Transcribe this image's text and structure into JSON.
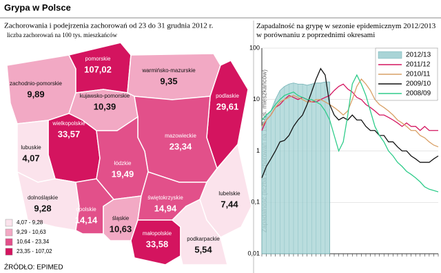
{
  "title": "Grypa w Polsce",
  "source": "ŹRÓDŁO: EPIMED",
  "chart_data": [
    {
      "type": "map",
      "title": "Zachorowania i podejrzenia zachorowań od 23 do 31 grudnia 2012 r.",
      "subtitle": "liczba zachorowań na 100 tys. mieszkańców",
      "categories": [
        "zachodnio-pomorskie",
        "pomorskie",
        "warmińsko-mazurskie",
        "podlaskie",
        "kujawsko-pomorskie",
        "wielkopolskie",
        "lubuskie",
        "mazowieckie",
        "łódzkie",
        "lubelskie",
        "dolnośląskie",
        "opolskie",
        "śląskie",
        "świętokrzyskie",
        "małopolskie",
        "podkarpackie"
      ],
      "values": [
        9.89,
        107.02,
        9.35,
        29.61,
        10.39,
        33.57,
        4.07,
        23.34,
        19.49,
        7.44,
        9.28,
        14.14,
        10.63,
        14.94,
        33.58,
        5.54
      ],
      "value_labels": [
        "9,89",
        "107,02",
        "9,35",
        "29,61",
        "10,39",
        "33,57",
        "4,07",
        "23,34",
        "19,49",
        "7,44",
        "9,28",
        "14,14",
        "10,63",
        "14,94",
        "33,58",
        "5,54"
      ],
      "colors": [
        "#f2a9c4",
        "#d4145f",
        "#f2a9c4",
        "#d4145f",
        "#f2a9c4",
        "#d4145f",
        "#fbe3ec",
        "#e2508a",
        "#e2508a",
        "#fbe3ec",
        "#fbe3ec",
        "#e2508a",
        "#f2a9c4",
        "#e2508a",
        "#d4145f",
        "#fbe3ec"
      ],
      "legend": [
        {
          "label": "4,07 - 9,28",
          "color": "#fbe3ec"
        },
        {
          "label": "9,29 - 10,63",
          "color": "#f2a9c4"
        },
        {
          "label": "10,64 - 23,34",
          "color": "#e2508a"
        },
        {
          "label": "23,35 - 107,02",
          "color": "#d4145f"
        }
      ]
    },
    {
      "type": "line",
      "title": "Zapadalność na grypę w sezonie epidemicznym 2012/2013 w porównaniu z poprzednimi okresami",
      "ylabel": "Zapadalność (liczba zachorowań na 100 tys. mieszkańców)",
      "log_y": true,
      "legend_position": "upper right",
      "ylim": [
        0.01,
        100
      ],
      "yticks": [
        {
          "value": 0.01,
          "label": "0,01"
        },
        {
          "value": 0.1,
          "label": "0,1"
        },
        1,
        10,
        100
      ],
      "categories": [
        null,
        null,
        null,
        null,
        null,
        null,
        null,
        null,
        null,
        null,
        null,
        null,
        null,
        null,
        null,
        null,
        null,
        null,
        null,
        null,
        null,
        null,
        null,
        null,
        null,
        null,
        null,
        null,
        null,
        null,
        null,
        null,
        null,
        null,
        null,
        null,
        null,
        null,
        null,
        null
      ],
      "series": [
        {
          "name": "2012/13",
          "color": "#a9d4d6",
          "fill": true,
          "values": [
            3,
            5,
            6,
            10,
            15,
            18,
            20,
            21,
            20,
            20,
            19,
            20,
            21,
            21,
            22,
            22,
            null,
            null,
            null,
            null,
            null,
            null,
            null,
            null,
            null,
            null,
            null,
            null,
            null,
            null,
            null,
            null,
            null,
            null,
            null,
            null,
            null,
            null,
            null,
            null
          ]
        },
        {
          "name": "2011/12",
          "color": "#d4145f",
          "values": [
            2.5,
            4,
            5,
            7,
            8,
            10,
            12,
            11,
            10,
            11,
            10,
            9,
            9,
            10,
            11,
            12,
            15,
            18,
            20,
            16,
            14,
            11,
            10,
            8,
            7,
            6,
            5,
            5,
            4.5,
            4,
            3.5,
            3,
            3.5,
            3,
            3,
            2.5,
            3,
            2.5,
            2.5,
            2.5
          ]
        },
        {
          "name": "2010/11",
          "color": "#d9a066",
          "values": [
            3,
            4,
            5,
            7,
            9,
            10,
            11,
            12,
            11,
            10,
            9,
            9,
            10,
            10,
            9,
            8,
            7,
            6,
            5,
            6,
            10,
            18,
            25,
            20,
            15,
            10,
            8,
            7,
            6,
            5,
            4,
            3.5,
            3,
            2.5,
            2.5,
            2,
            1.8,
            1.5,
            1.3,
            1.2
          ]
        },
        {
          "name": "2009/10",
          "color": "#111111",
          "values": [
            0.3,
            0.5,
            0.7,
            1,
            1.5,
            1.6,
            2,
            3,
            4,
            5,
            8,
            14,
            25,
            40,
            30,
            8,
            5,
            4,
            4.5,
            4,
            5,
            4,
            4,
            3,
            2.5,
            2.5,
            2,
            2,
            1.5,
            1.5,
            1.2,
            1,
            1,
            0.8,
            0.7,
            0.6,
            0.6,
            0.6,
            0.7,
            0.8
          ]
        },
        {
          "name": "2008/09",
          "color": "#2ecc8a",
          "values": [
            4,
            5,
            6,
            8,
            10,
            12,
            13,
            14,
            12,
            11,
            10,
            10,
            9,
            8,
            6,
            4,
            2,
            1,
            1.5,
            5,
            20,
            30,
            20,
            12,
            6,
            3,
            2,
            1.5,
            1,
            0.8,
            0.6,
            0.5,
            0.4,
            0.35,
            0.3,
            0.25,
            0.2,
            0.18,
            0.17,
            0.16
          ]
        }
      ]
    }
  ]
}
